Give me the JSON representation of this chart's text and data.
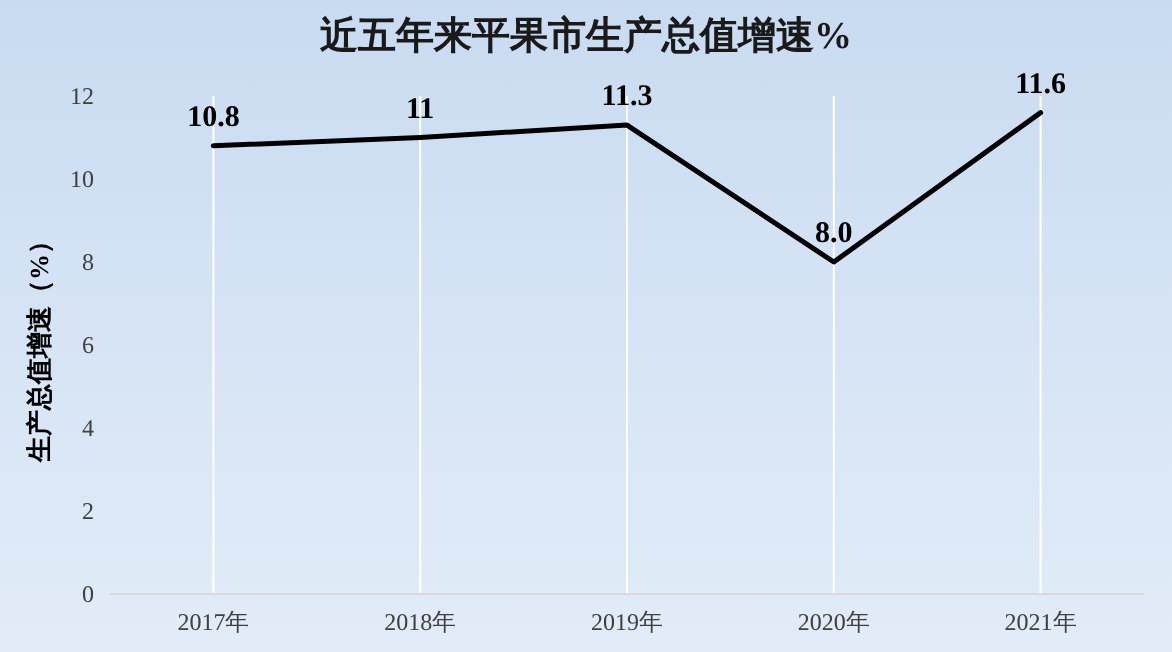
{
  "chart_data": {
    "type": "line",
    "title": "近五年来平果市生产总值增速%",
    "ylabel": "生产总值增速（%）",
    "categories": [
      "2017年",
      "2018年",
      "2019年",
      "2020年",
      "2021年"
    ],
    "series": [
      {
        "color": "#000000",
        "values": [
          10.8,
          11,
          11.3,
          8.0,
          11.6
        ],
        "value_labels": [
          "10.8",
          "11",
          "11.3",
          "8.0",
          "11.6"
        ]
      }
    ],
    "ylim": [
      0,
      12
    ],
    "yticks": [
      0,
      2,
      4,
      6,
      8,
      10,
      12
    ],
    "grid": "x",
    "marker": "none",
    "line_style": "solid"
  }
}
